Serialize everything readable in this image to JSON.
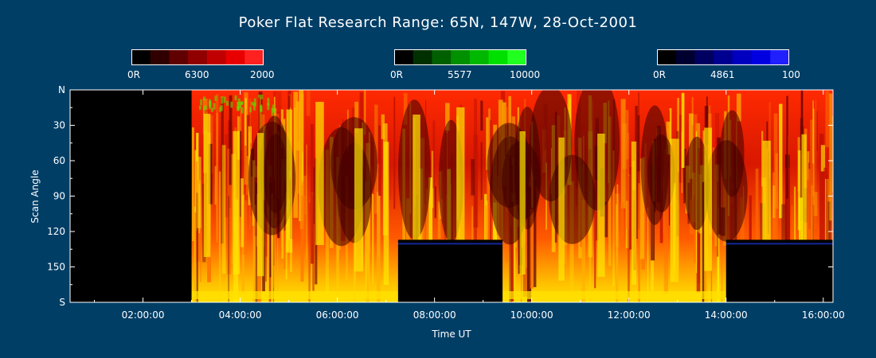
{
  "title": "Poker Flat Research Range: 65N, 147W, 28-Oct-2001",
  "colorbars": [
    {
      "name": "red-6300",
      "labels": [
        "0R",
        "6300",
        "2000"
      ],
      "swatches": [
        "#000000",
        "#300000",
        "#600000",
        "#900000",
        "#c00000",
        "#e80000",
        "#ff2020"
      ]
    },
    {
      "name": "green-5577",
      "labels": [
        "0R",
        "5577",
        "10000"
      ],
      "swatches": [
        "#000000",
        "#003000",
        "#006000",
        "#009000",
        "#00b800",
        "#00e000",
        "#20ff20"
      ]
    },
    {
      "name": "blue-4861",
      "labels": [
        "0R",
        "4861",
        "100"
      ],
      "swatches": [
        "#000000",
        "#000030",
        "#000060",
        "#000090",
        "#0000c0",
        "#0000e0",
        "#2020ff"
      ]
    }
  ],
  "chart_data": {
    "type": "heatmap",
    "title": "Poker Flat Research Range: 65N, 147W, 28-Oct-2001",
    "xlabel": "Time UT",
    "ylabel": "Scan Angle",
    "xticks": [
      "02:00:00",
      "04:00:00",
      "06:00:00",
      "08:00:00",
      "10:00:00",
      "12:00:00",
      "14:00:00",
      "16:00:00"
    ],
    "xtick_hours": [
      2,
      4,
      6,
      8,
      10,
      12,
      14,
      16
    ],
    "xlim_hours": [
      0.5,
      16.2
    ],
    "yticks": [
      "N",
      "30",
      "60",
      "90",
      "120",
      "150",
      "S"
    ],
    "ytick_values": [
      0,
      30,
      60,
      90,
      120,
      150,
      180
    ],
    "ylim": [
      0,
      180
    ],
    "no_data_regions": [
      {
        "t0": 0.5,
        "t1": 3.0,
        "a0": 0,
        "a1": 180
      },
      {
        "t0": 7.25,
        "t1": 9.4,
        "a0": 127,
        "a1": 180
      },
      {
        "t0": 14.0,
        "t1": 16.2,
        "a0": 127,
        "a1": 180
      }
    ],
    "bright_bands_hours": [
      3.3,
      3.9,
      4.4,
      5.0,
      5.6,
      6.4,
      7.0,
      7.6,
      8.5,
      9.8,
      10.6,
      11.4,
      12.1,
      12.9,
      13.6,
      14.8,
      15.6
    ]
  }
}
